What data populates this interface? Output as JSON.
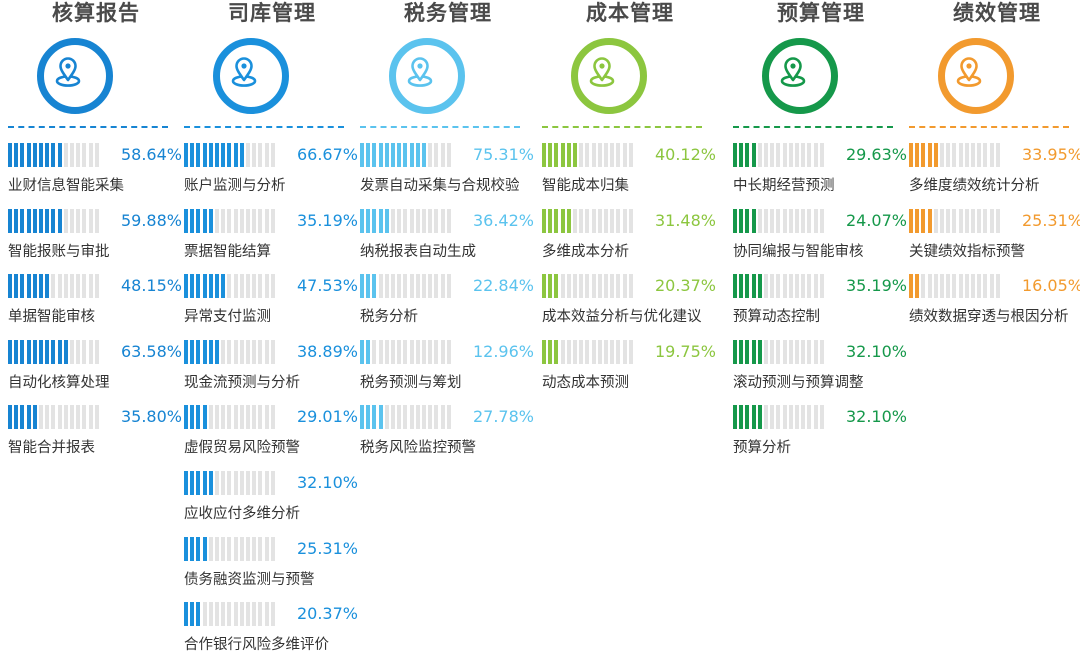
{
  "columns": [
    {
      "title": "核算报告",
      "icon": "location-pin-icon",
      "color": "#1784d2",
      "items": [
        {
          "label": "业财信息智能采集",
          "value": 58.64,
          "value_text": "58.64%"
        },
        {
          "label": "智能报账与审批",
          "value": 59.88,
          "value_text": "59.88%"
        },
        {
          "label": "单据智能审核",
          "value": 48.15,
          "value_text": "48.15%"
        },
        {
          "label": "自动化核算处理",
          "value": 63.58,
          "value_text": "63.58%"
        },
        {
          "label": "智能合并报表",
          "value": 35.8,
          "value_text": "35.80%"
        }
      ]
    },
    {
      "title": "司库管理",
      "icon": "location-pin-icon",
      "color": "#1a90dc",
      "items": [
        {
          "label": "账户监测与分析",
          "value": 66.67,
          "value_text": "66.67%"
        },
        {
          "label": "票据智能结算",
          "value": 35.19,
          "value_text": "35.19%"
        },
        {
          "label": "异常支付监测",
          "value": 47.53,
          "value_text": "47.53%"
        },
        {
          "label": "现金流预测与分析",
          "value": 38.89,
          "value_text": "38.89%"
        },
        {
          "label": "虚假贸易风险预警",
          "value": 29.01,
          "value_text": "29.01%"
        },
        {
          "label": "应收应付多维分析",
          "value": 32.1,
          "value_text": "32.10%"
        },
        {
          "label": "债务融资监测与预警",
          "value": 25.31,
          "value_text": "25.31%"
        },
        {
          "label": "合作银行风险多维评价",
          "value": 20.37,
          "value_text": "20.37%"
        }
      ]
    },
    {
      "title": "税务管理",
      "icon": "location-pin-icon",
      "color": "#5bc3ee",
      "items": [
        {
          "label": "发票自动采集与合规校验",
          "value": 75.31,
          "value_text": "75.31%"
        },
        {
          "label": "纳税报表自动生成",
          "value": 36.42,
          "value_text": "36.42%"
        },
        {
          "label": "税务分析",
          "value": 22.84,
          "value_text": "22.84%"
        },
        {
          "label": "税务预测与筹划",
          "value": 12.96,
          "value_text": "12.96%"
        },
        {
          "label": "税务风险监控预警",
          "value": 27.78,
          "value_text": "27.78%"
        }
      ]
    },
    {
      "title": "成本管理",
      "icon": "location-pin-icon",
      "color": "#8cc63f",
      "items": [
        {
          "label": "智能成本归集",
          "value": 40.12,
          "value_text": "40.12%"
        },
        {
          "label": "多维成本分析",
          "value": 31.48,
          "value_text": "31.48%"
        },
        {
          "label": "成本效益分析与优化建议",
          "value": 20.37,
          "value_text": "20.37%"
        },
        {
          "label": "动态成本预测",
          "value": 19.75,
          "value_text": "19.75%"
        }
      ]
    },
    {
      "title": "预算管理",
      "icon": "location-pin-icon",
      "color": "#15984a",
      "items": [
        {
          "label": "中长期经营预测",
          "value": 29.63,
          "value_text": "29.63%"
        },
        {
          "label": "协同编报与智能审核",
          "value": 24.07,
          "value_text": "24.07%"
        },
        {
          "label": "预算动态控制",
          "value": 35.19,
          "value_text": "35.19%"
        },
        {
          "label": "滚动预测与预算调整",
          "value": 32.1,
          "value_text": "32.10%"
        },
        {
          "label": "预算分析",
          "value": 32.1,
          "value_text": "32.10%"
        }
      ]
    },
    {
      "title": "绩效管理",
      "icon": "location-pin-icon",
      "color": "#f29a2e",
      "items": [
        {
          "label": "多维度绩效统计分析",
          "value": 33.95,
          "value_text": "33.95%"
        },
        {
          "label": "关键绩效指标预警",
          "value": 25.31,
          "value_text": "25.31%"
        },
        {
          "label": "绩效数据穿透与根因分析",
          "value": 16.05,
          "value_text": "16.05%"
        }
      ]
    }
  ]
}
